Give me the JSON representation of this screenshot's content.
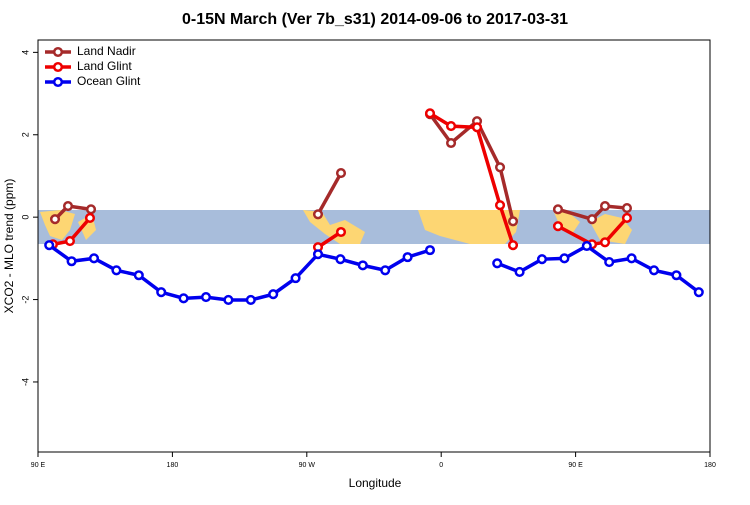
{
  "chart_data": {
    "type": "line",
    "title": "0-15N March (Ver 7b_s31)   2014-09-06 to 2017-03-31",
    "x_label": "Longitude",
    "y_label": "XCO2 - MLO trend (ppm)",
    "xlim": [
      90,
      540
    ],
    "xticks": [
      {
        "value": 90,
        "label": "90 E"
      },
      180,
      {
        "value": 270,
        "label": "90 W"
      },
      {
        "value": 360,
        "label": "0"
      },
      {
        "value": 450,
        "label": "90 E"
      },
      {
        "value": 540,
        "label": "180"
      }
    ],
    "ylim": [
      -5.7,
      4.3
    ],
    "yticks": [
      -4,
      -2,
      0,
      2,
      4
    ],
    "legend": "top-left",
    "series": [
      {
        "name": "Land Nadir",
        "color": "#a52a2a",
        "x": [
          101.4,
          110.1,
          125.5,
          200,
          277.5,
          292.9,
          320,
          352.5,
          366.6,
          384,
          399.4,
          408.1,
          420,
          438.2,
          461,
          469.7,
          484.4
        ],
        "values": [
          -0.05,
          0.27,
          0.19,
          null,
          0.07,
          1.07,
          null,
          2.5,
          1.8,
          2.33,
          1.21,
          -0.1,
          null,
          0.19,
          -0.05,
          0.27,
          0.22
        ]
      },
      {
        "name": "Land Glint",
        "color": "#ee0000",
        "x": [
          100,
          111.4,
          124.8,
          200,
          277.5,
          292.9,
          320,
          352.5,
          366.6,
          384,
          399.4,
          408.1,
          420,
          438.2,
          461,
          469.7,
          484.4
        ],
        "values": [
          -0.66,
          -0.58,
          -0.02,
          null,
          -0.73,
          -0.36,
          null,
          2.52,
          2.21,
          2.18,
          0.29,
          -0.68,
          null,
          -0.22,
          -0.66,
          -0.61,
          -0.02
        ]
      },
      {
        "name": "Ocean Glint",
        "color": "#0000ee",
        "x": [
          97.5,
          112.5,
          127.5,
          142.5,
          157.5,
          172.5,
          187.5,
          202.5,
          217.5,
          232.5,
          247.5,
          262.5,
          277.5,
          292.5,
          307.5,
          322.5,
          337.5,
          352.5,
          367.5,
          382.5,
          397.5,
          412.5,
          427.5,
          442.5,
          457.5,
          472.5,
          487.5,
          502.5,
          517.5,
          532.5
        ],
        "values": [
          -0.68,
          -1.07,
          -1.0,
          -1.29,
          -1.41,
          -1.82,
          -1.97,
          -1.94,
          -2.01,
          -2.01,
          -1.87,
          -1.48,
          -0.9,
          -1.02,
          -1.17,
          -1.29,
          -0.97,
          -0.8,
          null,
          null,
          -1.12,
          -1.33,
          -1.02,
          -1.0,
          -0.7,
          -1.09,
          -1.0,
          -1.29,
          -1.41,
          -1.82
        ]
      }
    ]
  }
}
